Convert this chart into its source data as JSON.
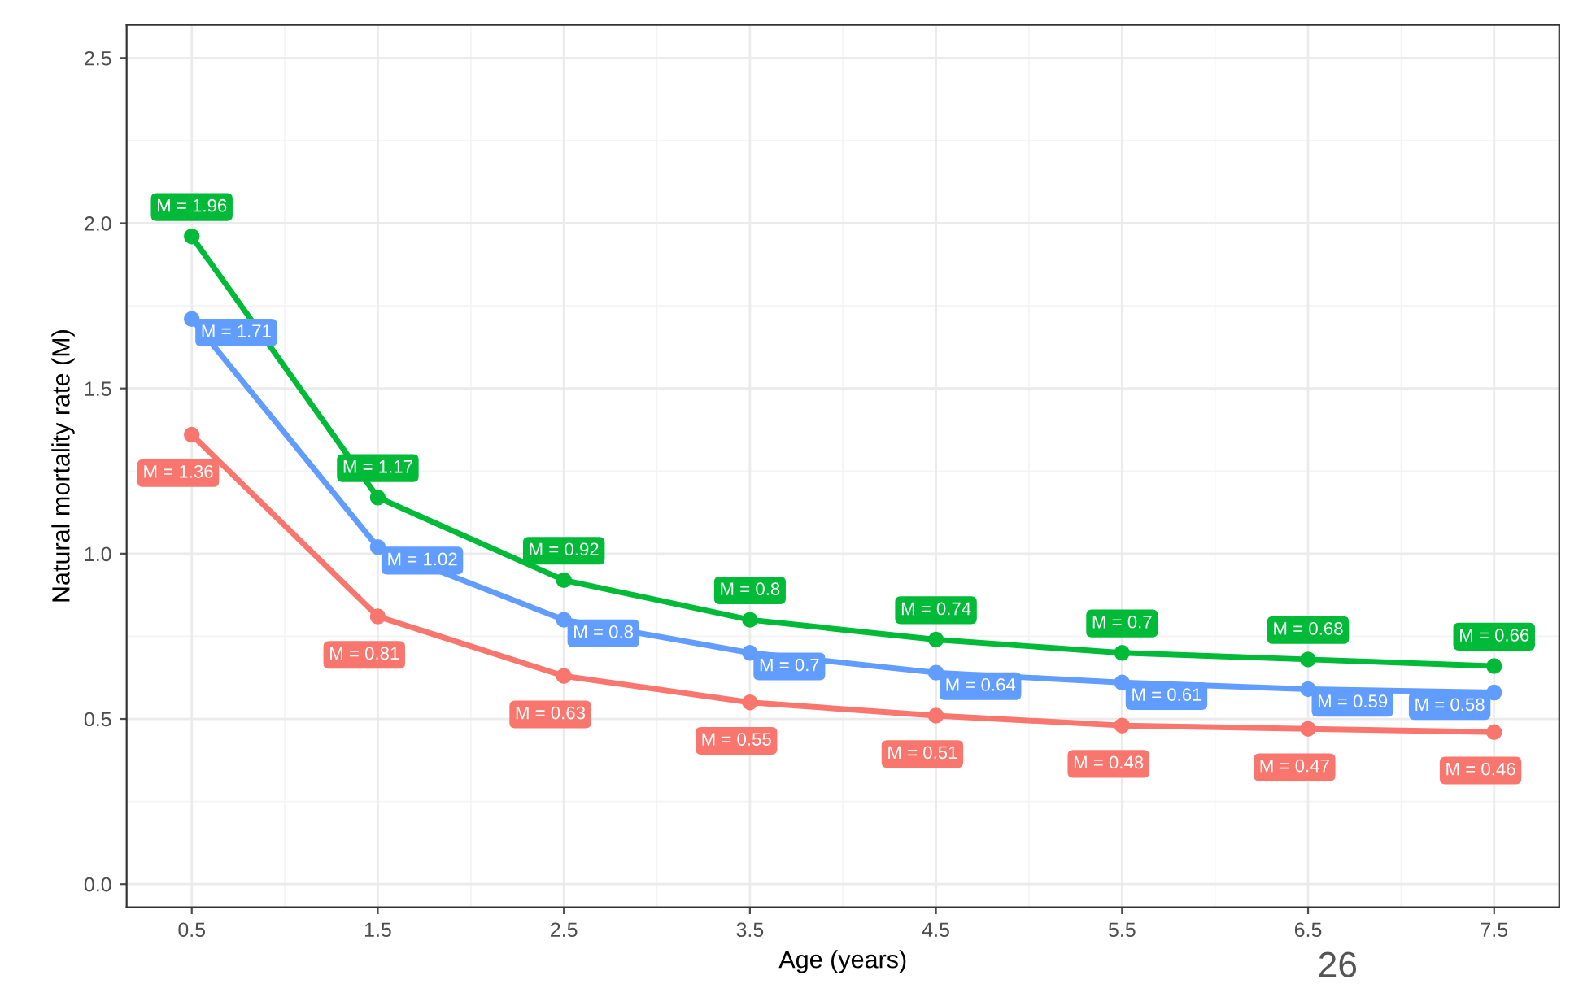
{
  "chart_data": {
    "type": "line",
    "xlabel": "Age (years)",
    "ylabel": "Natural mortality rate (M)",
    "x": [
      0.5,
      1.5,
      2.5,
      3.5,
      4.5,
      5.5,
      6.5,
      7.5
    ],
    "series": [
      {
        "color": "#00ba38",
        "values": [
          1.96,
          1.17,
          0.92,
          0.8,
          0.74,
          0.7,
          0.68,
          0.66
        ],
        "value_labels": [
          "M = 1.96",
          "M = 1.17",
          "M = 0.92",
          "M = 0.8",
          "M = 0.74",
          "M = 0.7",
          "M = 0.68",
          "M = 0.66"
        ]
      },
      {
        "color": "#619cff",
        "values": [
          1.71,
          1.02,
          0.8,
          0.7,
          0.64,
          0.61,
          0.59,
          0.58
        ],
        "value_labels": [
          "M = 1.71",
          "M = 1.02",
          "M = 0.8",
          "M = 0.7",
          "M = 0.64",
          "M = 0.61",
          "M = 0.59",
          "M = 0.58"
        ]
      },
      {
        "color": "#f8766d",
        "values": [
          1.36,
          0.81,
          0.63,
          0.55,
          0.51,
          0.48,
          0.47,
          0.46
        ],
        "value_labels": [
          "M = 1.36",
          "M = 0.81",
          "M = 0.63",
          "M = 0.55",
          "M = 0.51",
          "M = 0.48",
          "M = 0.47",
          "M = 0.46"
        ]
      }
    ],
    "xlim": [
      0.15,
      7.85
    ],
    "xticks": [
      0.5,
      1.5,
      2.5,
      3.5,
      4.5,
      5.5,
      6.5,
      7.5
    ],
    "ylim": [
      -0.07,
      2.6
    ],
    "yticks": [
      {
        "value": 0,
        "label": "0.0"
      },
      {
        "value": 0.5,
        "label": "0.5"
      },
      {
        "value": 1,
        "label": "1.0"
      },
      {
        "value": 1.5,
        "label": "1.5"
      },
      {
        "value": 2,
        "label": "2.0"
      },
      {
        "value": 2.5,
        "label": "2.5"
      }
    ],
    "grid": true,
    "marker": "circle",
    "line_style": "solid",
    "legend": false,
    "annotations": [
      "26"
    ]
  }
}
